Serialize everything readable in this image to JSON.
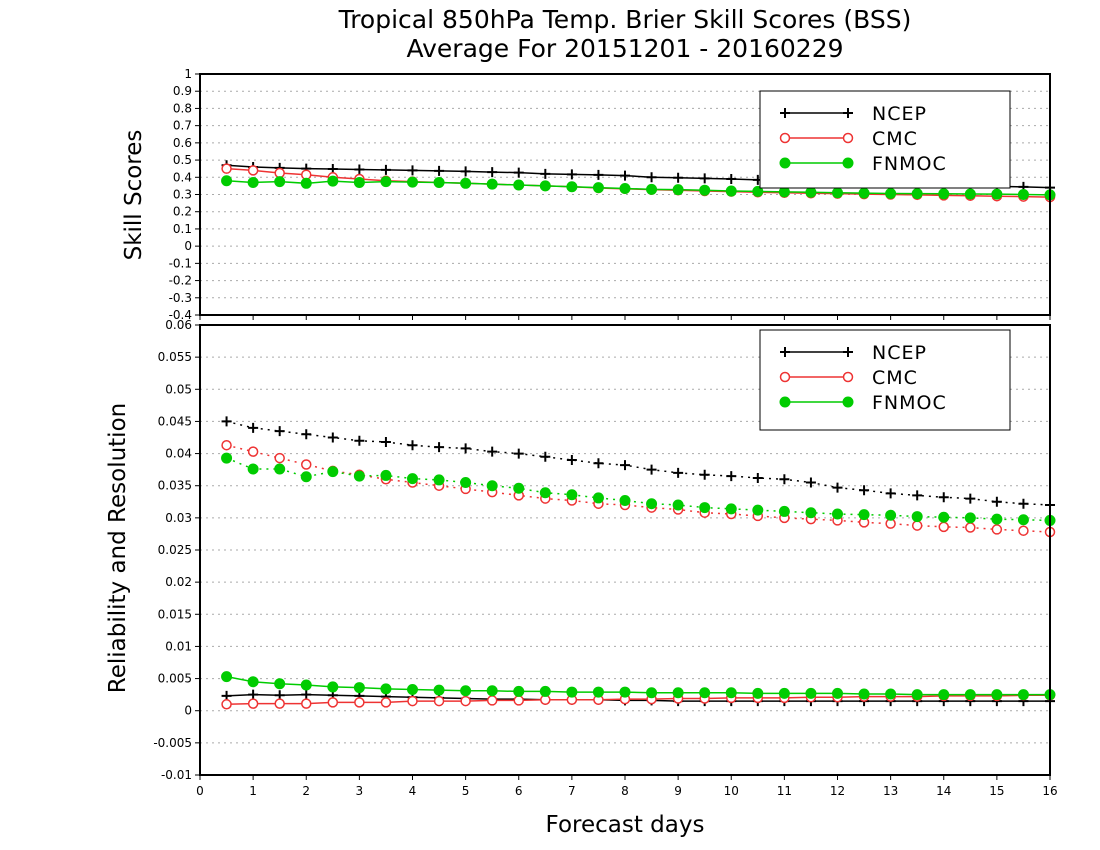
{
  "title_line1": "Tropical 850hPa Temp. Brier Skill Scores (BSS)",
  "title_line2": "Average For 20151201 - 20160229",
  "colors": {
    "NCEP": "#000000",
    "CMC": "#ee3333",
    "FNMOC": "#00cc00",
    "grid": "#aaaaaa"
  },
  "chart_data": [
    {
      "type": "line",
      "panel": "top",
      "ylabel": "Skill Scores",
      "xlabel": "",
      "xlim": [
        0,
        16
      ],
      "ylim": [
        -0.4,
        1.0
      ],
      "yticks": [
        "1",
        "0.9",
        "0.8",
        "0.7",
        "0.6",
        "0.5",
        "0.4",
        "0.3",
        "0.2",
        "0.1",
        "0",
        "-0.1",
        "-0.2",
        "-0.3",
        "-0.4"
      ],
      "grid": true,
      "legend_position": "top-right",
      "x": [
        0.5,
        1,
        1.5,
        2,
        2.5,
        3,
        3.5,
        4,
        4.5,
        5,
        5.5,
        6,
        6.5,
        7,
        7.5,
        8,
        8.5,
        9,
        9.5,
        10,
        10.5,
        11,
        11.5,
        12,
        12.5,
        13,
        13.5,
        14,
        14.5,
        15,
        15.5,
        16
      ],
      "series": [
        {
          "name": "NCEP",
          "marker": "plus",
          "line": "solid",
          "values": [
            0.47,
            0.46,
            0.455,
            0.45,
            0.448,
            0.445,
            0.443,
            0.44,
            0.437,
            0.434,
            0.43,
            0.427,
            0.42,
            0.417,
            0.414,
            0.41,
            0.4,
            0.397,
            0.394,
            0.39,
            0.385,
            0.38,
            0.375,
            0.372,
            0.368,
            0.365,
            0.36,
            0.355,
            0.35,
            0.347,
            0.344,
            0.34
          ]
        },
        {
          "name": "CMC",
          "marker": "circle-open",
          "line": "solid",
          "values": [
            0.45,
            0.44,
            0.425,
            0.415,
            0.4,
            0.39,
            0.38,
            0.375,
            0.37,
            0.365,
            0.36,
            0.355,
            0.35,
            0.345,
            0.338,
            0.333,
            0.328,
            0.325,
            0.32,
            0.317,
            0.313,
            0.31,
            0.307,
            0.305,
            0.302,
            0.3,
            0.298,
            0.295,
            0.293,
            0.29,
            0.288,
            0.285
          ]
        },
        {
          "name": "FNMOC",
          "marker": "circle-filled",
          "line": "solid",
          "values": [
            0.38,
            0.37,
            0.375,
            0.365,
            0.378,
            0.37,
            0.375,
            0.372,
            0.37,
            0.365,
            0.36,
            0.355,
            0.35,
            0.345,
            0.34,
            0.335,
            0.33,
            0.328,
            0.325,
            0.32,
            0.318,
            0.315,
            0.313,
            0.31,
            0.308,
            0.306,
            0.305,
            0.304,
            0.303,
            0.302,
            0.3,
            0.298
          ]
        }
      ]
    },
    {
      "type": "line",
      "panel": "bottom",
      "ylabel": "Reliability and Resolution",
      "xlabel": "Forecast days",
      "xlim": [
        0,
        16
      ],
      "ylim": [
        -0.01,
        0.06
      ],
      "xticks": [
        "0",
        "1",
        "2",
        "3",
        "4",
        "5",
        "6",
        "7",
        "8",
        "9",
        "10",
        "11",
        "12",
        "13",
        "14",
        "15",
        "16"
      ],
      "yticks": [
        "0.06",
        "0.055",
        "0.05",
        "0.045",
        "0.04",
        "0.035",
        "0.03",
        "0.025",
        "0.02",
        "0.015",
        "0.01",
        "0.005",
        "0",
        "-0.005",
        "-0.01"
      ],
      "grid": true,
      "legend_position": "top-right",
      "x": [
        0.5,
        1,
        1.5,
        2,
        2.5,
        3,
        3.5,
        4,
        4.5,
        5,
        5.5,
        6,
        6.5,
        7,
        7.5,
        8,
        8.5,
        9,
        9.5,
        10,
        10.5,
        11,
        11.5,
        12,
        12.5,
        13,
        13.5,
        14,
        14.5,
        15,
        15.5,
        16
      ],
      "series": [
        {
          "name": "NCEP",
          "group": "resolution",
          "marker": "plus",
          "line": "dotted",
          "values": [
            0.045,
            0.044,
            0.0435,
            0.043,
            0.0425,
            0.042,
            0.0418,
            0.0413,
            0.041,
            0.0408,
            0.0403,
            0.04,
            0.0395,
            0.039,
            0.0385,
            0.0382,
            0.0375,
            0.037,
            0.0367,
            0.0365,
            0.0362,
            0.036,
            0.0355,
            0.0347,
            0.0343,
            0.0338,
            0.0335,
            0.0332,
            0.033,
            0.0325,
            0.0322,
            0.032
          ]
        },
        {
          "name": "CMC",
          "group": "resolution",
          "marker": "circle-open",
          "line": "dotted",
          "values": [
            0.0413,
            0.0403,
            0.0393,
            0.0383,
            0.0373,
            0.0367,
            0.036,
            0.0355,
            0.035,
            0.0345,
            0.034,
            0.0335,
            0.033,
            0.0327,
            0.0322,
            0.032,
            0.0316,
            0.0313,
            0.0308,
            0.0306,
            0.0303,
            0.03,
            0.0298,
            0.0296,
            0.0293,
            0.0291,
            0.0288,
            0.0286,
            0.0285,
            0.0282,
            0.028,
            0.0278
          ]
        },
        {
          "name": "FNMOC",
          "group": "resolution",
          "marker": "circle-filled",
          "line": "dotted",
          "values": [
            0.0393,
            0.0376,
            0.0376,
            0.0364,
            0.0372,
            0.0365,
            0.0366,
            0.0361,
            0.0359,
            0.0355,
            0.035,
            0.0346,
            0.0339,
            0.0336,
            0.0331,
            0.0327,
            0.0322,
            0.032,
            0.0316,
            0.0314,
            0.0312,
            0.031,
            0.0308,
            0.0306,
            0.0305,
            0.0304,
            0.0302,
            0.0301,
            0.03,
            0.0298,
            0.0297,
            0.0296
          ]
        },
        {
          "name": "NCEP",
          "group": "reliability",
          "marker": "plus",
          "line": "solid",
          "values": [
            0.0023,
            0.0025,
            0.0024,
            0.0025,
            0.0024,
            0.0023,
            0.0022,
            0.0021,
            0.002,
            0.0019,
            0.0018,
            0.0018,
            0.0017,
            0.0017,
            0.0017,
            0.0016,
            0.0016,
            0.0015,
            0.0015,
            0.0015,
            0.0015,
            0.0015,
            0.0015,
            0.0015,
            0.0015,
            0.0015,
            0.0015,
            0.0015,
            0.0015,
            0.0015,
            0.0015,
            0.0015
          ]
        },
        {
          "name": "CMC",
          "group": "reliability",
          "marker": "circle-open",
          "line": "solid",
          "values": [
            0.001,
            0.0011,
            0.0011,
            0.0011,
            0.0013,
            0.0013,
            0.0013,
            0.0015,
            0.0015,
            0.0015,
            0.0016,
            0.0016,
            0.0017,
            0.0017,
            0.0017,
            0.0018,
            0.0018,
            0.0019,
            0.0019,
            0.002,
            0.002,
            0.002,
            0.0021,
            0.0021,
            0.0022,
            0.0022,
            0.0022,
            0.0023,
            0.0023,
            0.0023,
            0.0024,
            0.0024
          ]
        },
        {
          "name": "FNMOC",
          "group": "reliability",
          "marker": "circle-filled",
          "line": "solid",
          "values": [
            0.0053,
            0.0045,
            0.0042,
            0.004,
            0.0037,
            0.0036,
            0.0034,
            0.0033,
            0.0032,
            0.0031,
            0.0031,
            0.003,
            0.003,
            0.0029,
            0.0029,
            0.0029,
            0.0028,
            0.0028,
            0.0028,
            0.0028,
            0.0027,
            0.0027,
            0.0027,
            0.0027,
            0.0026,
            0.0026,
            0.0025,
            0.0025,
            0.0025,
            0.0025,
            0.0025,
            0.0025
          ]
        }
      ]
    }
  ],
  "legend": [
    "NCEP",
    "CMC",
    "FNMOC"
  ]
}
